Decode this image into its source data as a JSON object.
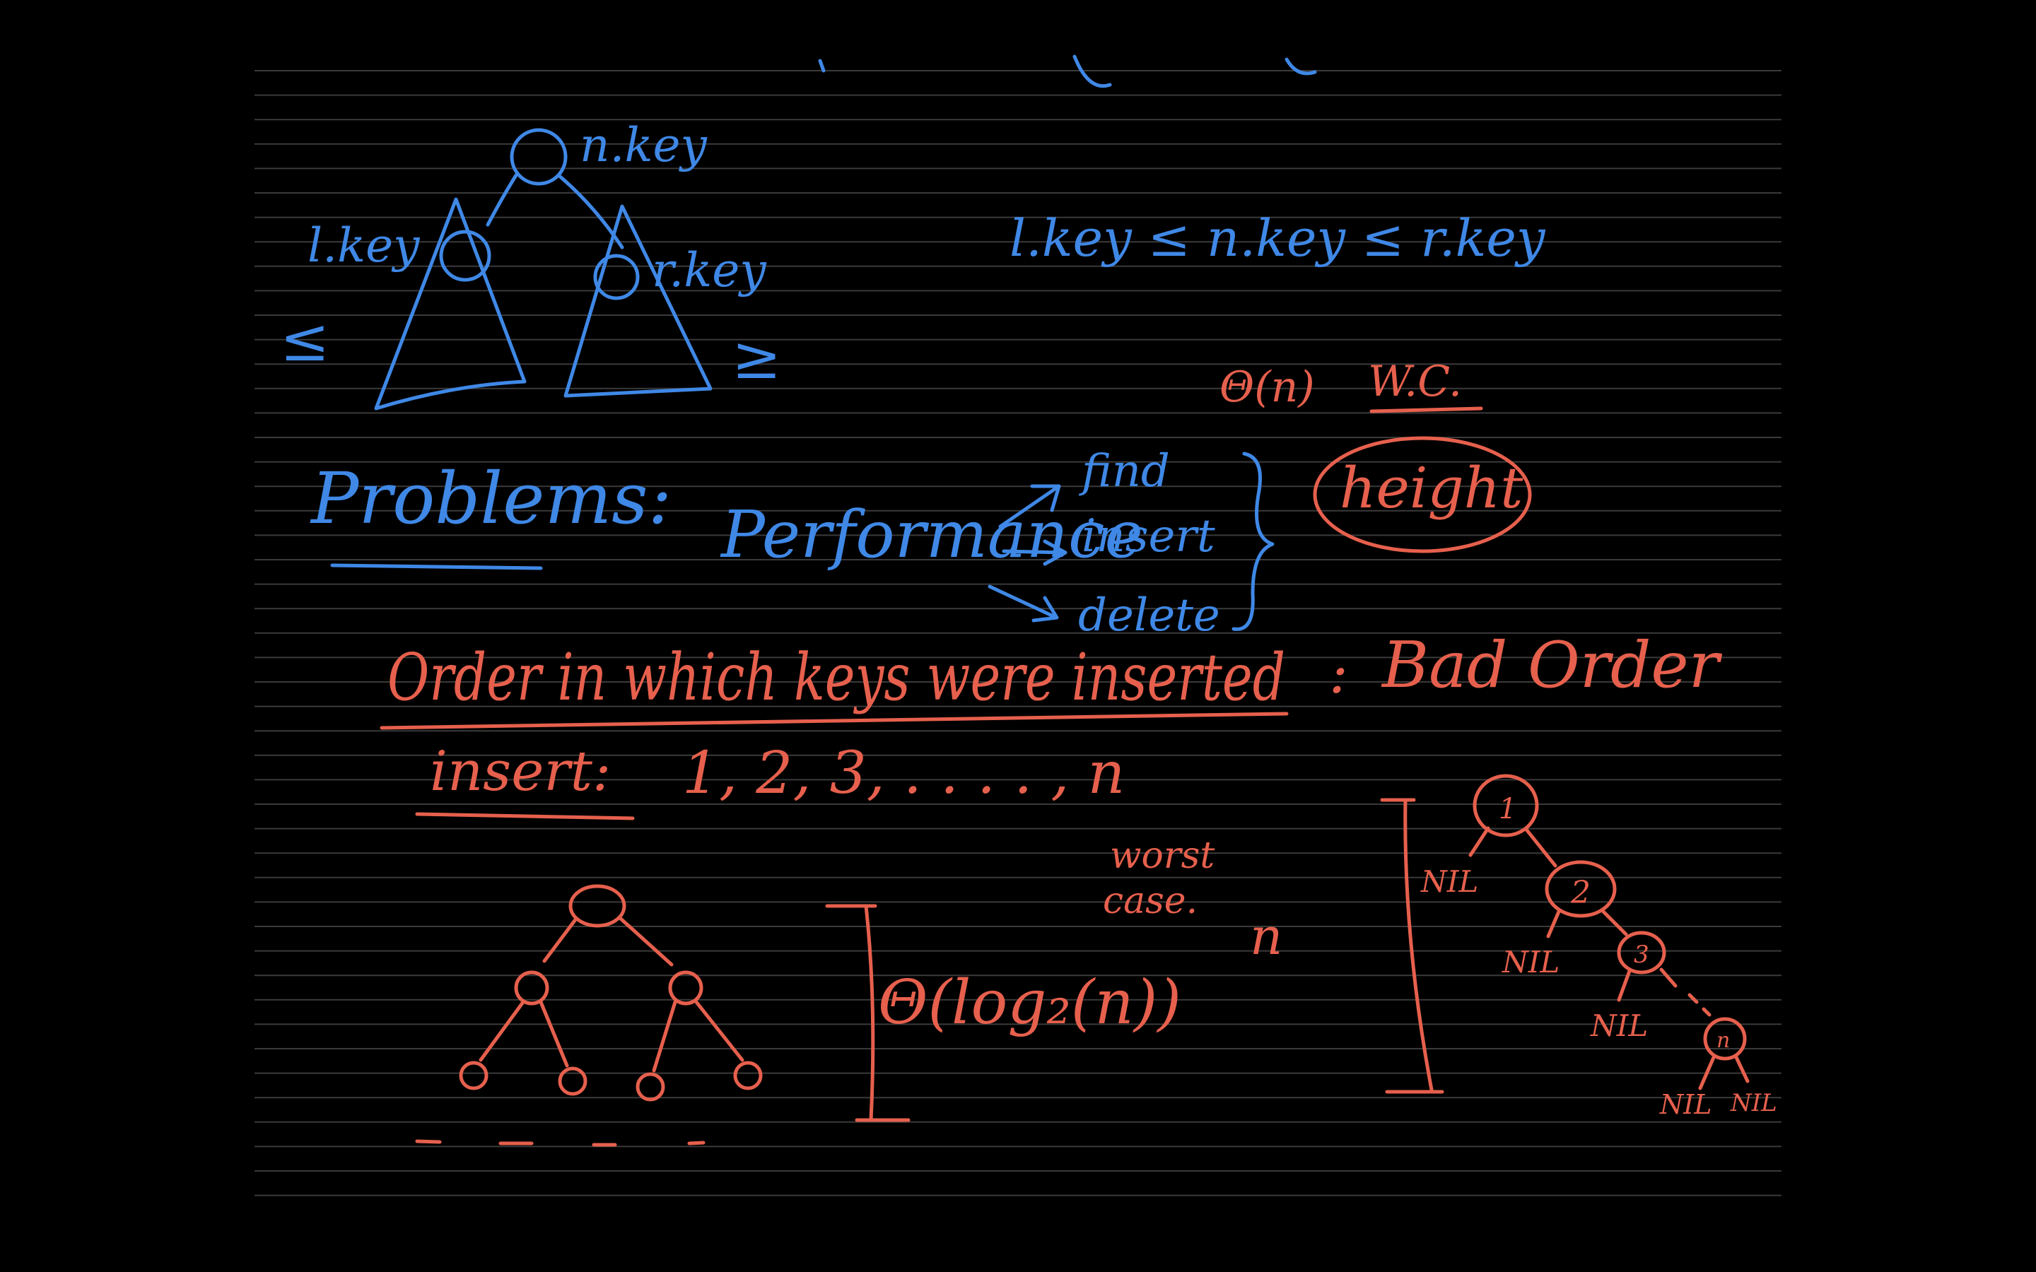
{
  "colors": {
    "background": "#000000",
    "page": "#000000",
    "rule_line": "#3a3a3a",
    "blue_ink": "#3f88e6",
    "red_ink": "#e6604d"
  },
  "bst": {
    "node_label": "n.key",
    "left_label": "l.key",
    "right_label": "r.key",
    "left_relation": "≤",
    "right_relation": "≥",
    "invariant": "l.key ≤ n.key ≤ r.key"
  },
  "worst_case": {
    "bound": "Θ(n)",
    "label": "W.C."
  },
  "problems": {
    "heading": "Problems:",
    "topic": "Performance",
    "ops": [
      "find",
      "insert",
      "delete"
    ],
    "depends_on": "height"
  },
  "order": {
    "cause": "Order in which keys were inserted",
    "separator": ":",
    "result": "Bad Order"
  },
  "insert_seq": {
    "label": "insert:",
    "sequence": "1, 2, 3, . . . . , n"
  },
  "balanced": {
    "height_bound": "Θ(log₂(n))"
  },
  "worst": {
    "label_line1": "worst",
    "label_line2": "case.",
    "height": "n",
    "nodes": [
      "1",
      "2",
      "3",
      "n"
    ],
    "nil": "NIL"
  }
}
